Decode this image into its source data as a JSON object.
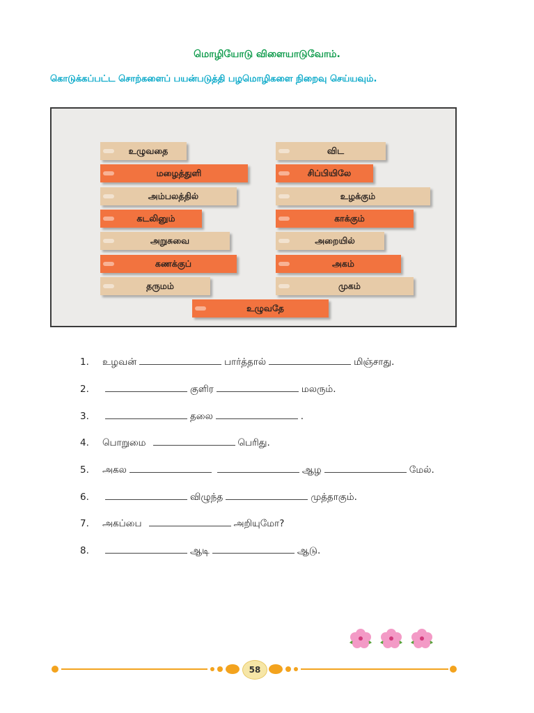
{
  "title": "மொழியோடு விளையாடுவோம்.",
  "instruction": "கொடுக்கப்பட்ட சொற்களைப் பயன்படுத்தி பழமொழிகளை நிறைவு செய்யவும்.",
  "word_tags": {
    "left": [
      "உழுவதை",
      "மழைத்துளி",
      "அம்பலத்தில்",
      "கடலினும்",
      "அறுசுவை",
      "கணக்குப்",
      "தருமம்"
    ],
    "right": [
      "விட",
      "சிப்பியிலே",
      "உழக்கும்",
      "காக்கும்",
      "அறையில்",
      "அகம்",
      "முகம்"
    ],
    "bottom": "உழுவதே"
  },
  "exercises": [
    {
      "num": "1.",
      "parts": [
        "உழவன்",
        "பார்த்தால்",
        "மிஞ்சாது."
      ]
    },
    {
      "num": "2.",
      "parts": [
        "",
        "குளிர",
        "மலரும்."
      ]
    },
    {
      "num": "3.",
      "parts": [
        "",
        "தலை",
        "."
      ]
    },
    {
      "num": "4.",
      "parts": [
        "பொறுமை",
        "பெரிது."
      ]
    },
    {
      "num": "5.",
      "parts": [
        "அகல",
        "",
        "ஆழ",
        "மேல்."
      ]
    },
    {
      "num": "6.",
      "parts": [
        "",
        "விழுந்த",
        "முத்தாகும்."
      ]
    },
    {
      "num": "7.",
      "parts": [
        "அகப்பை",
        "அறியுமோ?"
      ]
    },
    {
      "num": "8.",
      "parts": [
        "",
        "ஆடி",
        "ஆடு."
      ]
    }
  ],
  "page_number": "58",
  "colors": {
    "title": "#0c9a4a",
    "instruction": "#00a6c7",
    "tag_beige": "#e7cba8",
    "tag_orange": "#f2733f",
    "footer": "#f3a31e"
  },
  "decoration": {
    "icon": "hibiscus-flower-icon",
    "count": 3
  }
}
